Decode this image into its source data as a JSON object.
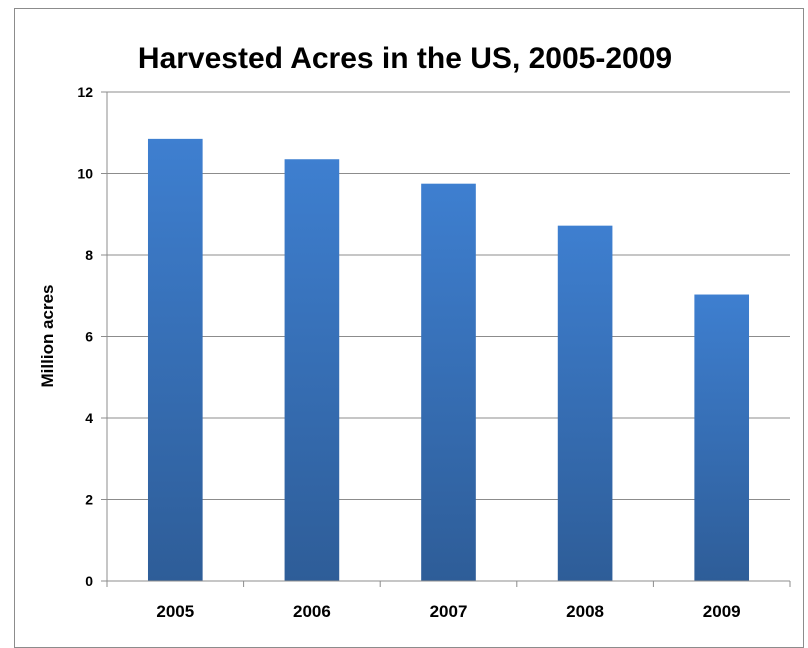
{
  "chart_data": {
    "type": "bar",
    "title": "Harvested Acres in the US, 2005-2009",
    "xlabel": "",
    "ylabel": "Million acres",
    "categories": [
      "2005",
      "2006",
      "2007",
      "2008",
      "2009"
    ],
    "values": [
      10.85,
      10.35,
      9.75,
      8.72,
      7.03
    ],
    "ylim": [
      0,
      12
    ],
    "yticks": [
      "0",
      "2",
      "4",
      "6",
      "8",
      "10",
      "12"
    ],
    "grid": true,
    "legend": "none",
    "colors": {
      "bar_top": "#3e7fd0",
      "bar_bottom": "#2e5d98",
      "grid": "#8c8c8c",
      "axis": "#8c8c8c"
    }
  }
}
